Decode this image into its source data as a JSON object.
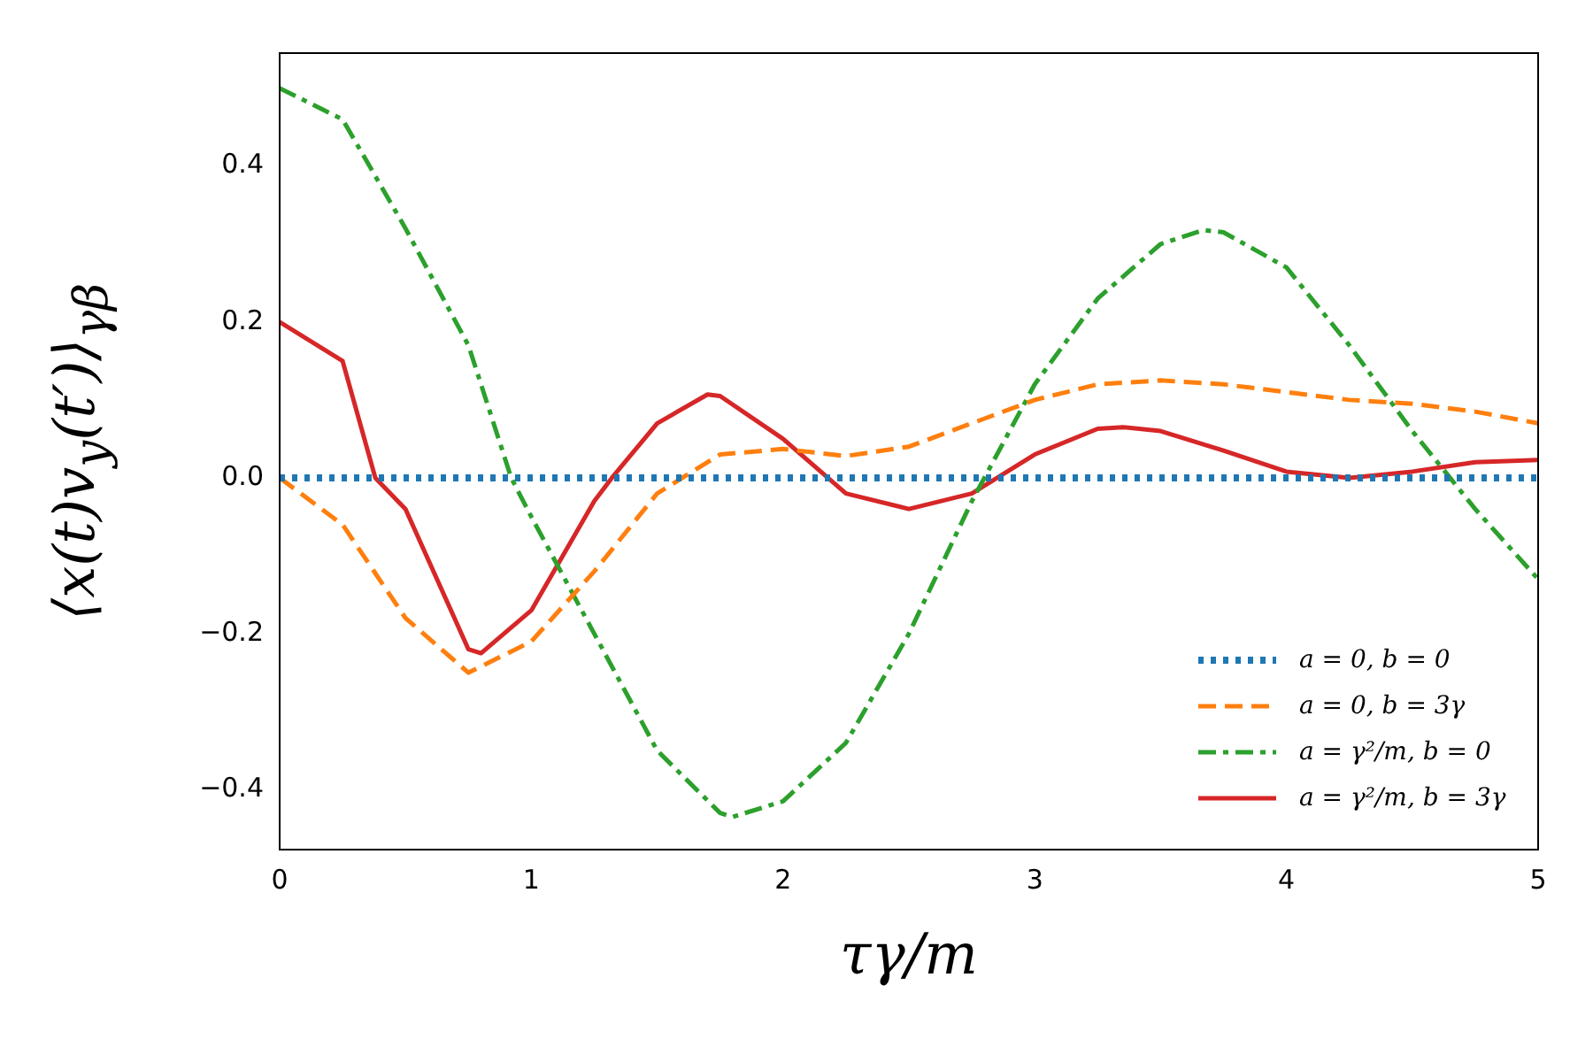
{
  "chart_data": {
    "type": "line",
    "xlabel": "τγ/m",
    "ylabel": "⟨x(t)v$_{y}$(t′)⟩$_{γβ}$",
    "xlim": [
      0,
      5
    ],
    "ylim": [
      -0.477,
      0.545
    ],
    "xticks": [
      0,
      1,
      2,
      3,
      4,
      5
    ],
    "yticks": [
      {
        "value": -0.4,
        "label": "−0.4"
      },
      {
        "value": -0.2,
        "label": "−0.2"
      },
      {
        "value": 0,
        "label": "0.0"
      },
      0.2,
      0.4
    ],
    "grid": false,
    "legend": "bottom right",
    "marker": "none",
    "series": [
      {
        "name": "a = 0, b = 0",
        "color": "#1f77b4",
        "line_style": "dotted",
        "x": [
          0,
          5
        ],
        "values": [
          0,
          0
        ]
      },
      {
        "name": "a = 0, b = 3γ",
        "color": "#ff7f0e",
        "line_style": "dashed",
        "x": [
          0,
          0.25,
          0.5,
          0.75,
          1,
          1.25,
          1.5,
          1.75,
          2,
          2.25,
          2.5,
          2.75,
          3,
          3.25,
          3.5,
          3.75,
          4,
          4.25,
          4.5,
          4.75,
          5
        ],
        "values": [
          0,
          -0.06,
          -0.18,
          -0.25,
          -0.21,
          -0.12,
          -0.02,
          0.03,
          0.037,
          0.028,
          0.04,
          0.07,
          0.1,
          0.12,
          0.125,
          0.12,
          0.11,
          0.1,
          0.095,
          0.085,
          0.07
        ]
      },
      {
        "name": "a = γ²/m, b = 0",
        "color": "#2ca02c",
        "line_style": "dashdot",
        "x": [
          0,
          0.25,
          0.5,
          0.75,
          0.92,
          1,
          1.25,
          1.5,
          1.75,
          1.8,
          2,
          2.25,
          2.5,
          2.75,
          2.8,
          3,
          3.25,
          3.5,
          3.67,
          3.75,
          4,
          4.25,
          4.5,
          4.65,
          4.75,
          5
        ],
        "values": [
          0.5,
          0.46,
          0.32,
          0.17,
          0,
          -0.05,
          -0.2,
          -0.35,
          -0.43,
          -0.435,
          -0.415,
          -0.34,
          -0.2,
          -0.03,
          0,
          0.12,
          0.23,
          0.3,
          0.318,
          0.315,
          0.27,
          0.17,
          0.06,
          0,
          -0.04,
          -0.13
        ]
      },
      {
        "name": "a = γ²/m, b = 3γ",
        "color": "#d62728",
        "line_style": "solid",
        "x": [
          0,
          0.25,
          0.38,
          0.5,
          0.75,
          0.8,
          1,
          1.25,
          1.32,
          1.5,
          1.7,
          1.75,
          2,
          2.25,
          2.5,
          2.75,
          3,
          3.25,
          3.35,
          3.5,
          3.75,
          4,
          4.25,
          4.5,
          4.75,
          5
        ],
        "values": [
          0.2,
          0.15,
          0,
          -0.04,
          -0.22,
          -0.225,
          -0.17,
          -0.03,
          0,
          0.07,
          0.107,
          0.105,
          0.05,
          -0.02,
          -0.04,
          -0.02,
          0.03,
          0.063,
          0.065,
          0.06,
          0.035,
          0.008,
          0,
          0.008,
          0.02,
          0.023
        ]
      }
    ]
  }
}
